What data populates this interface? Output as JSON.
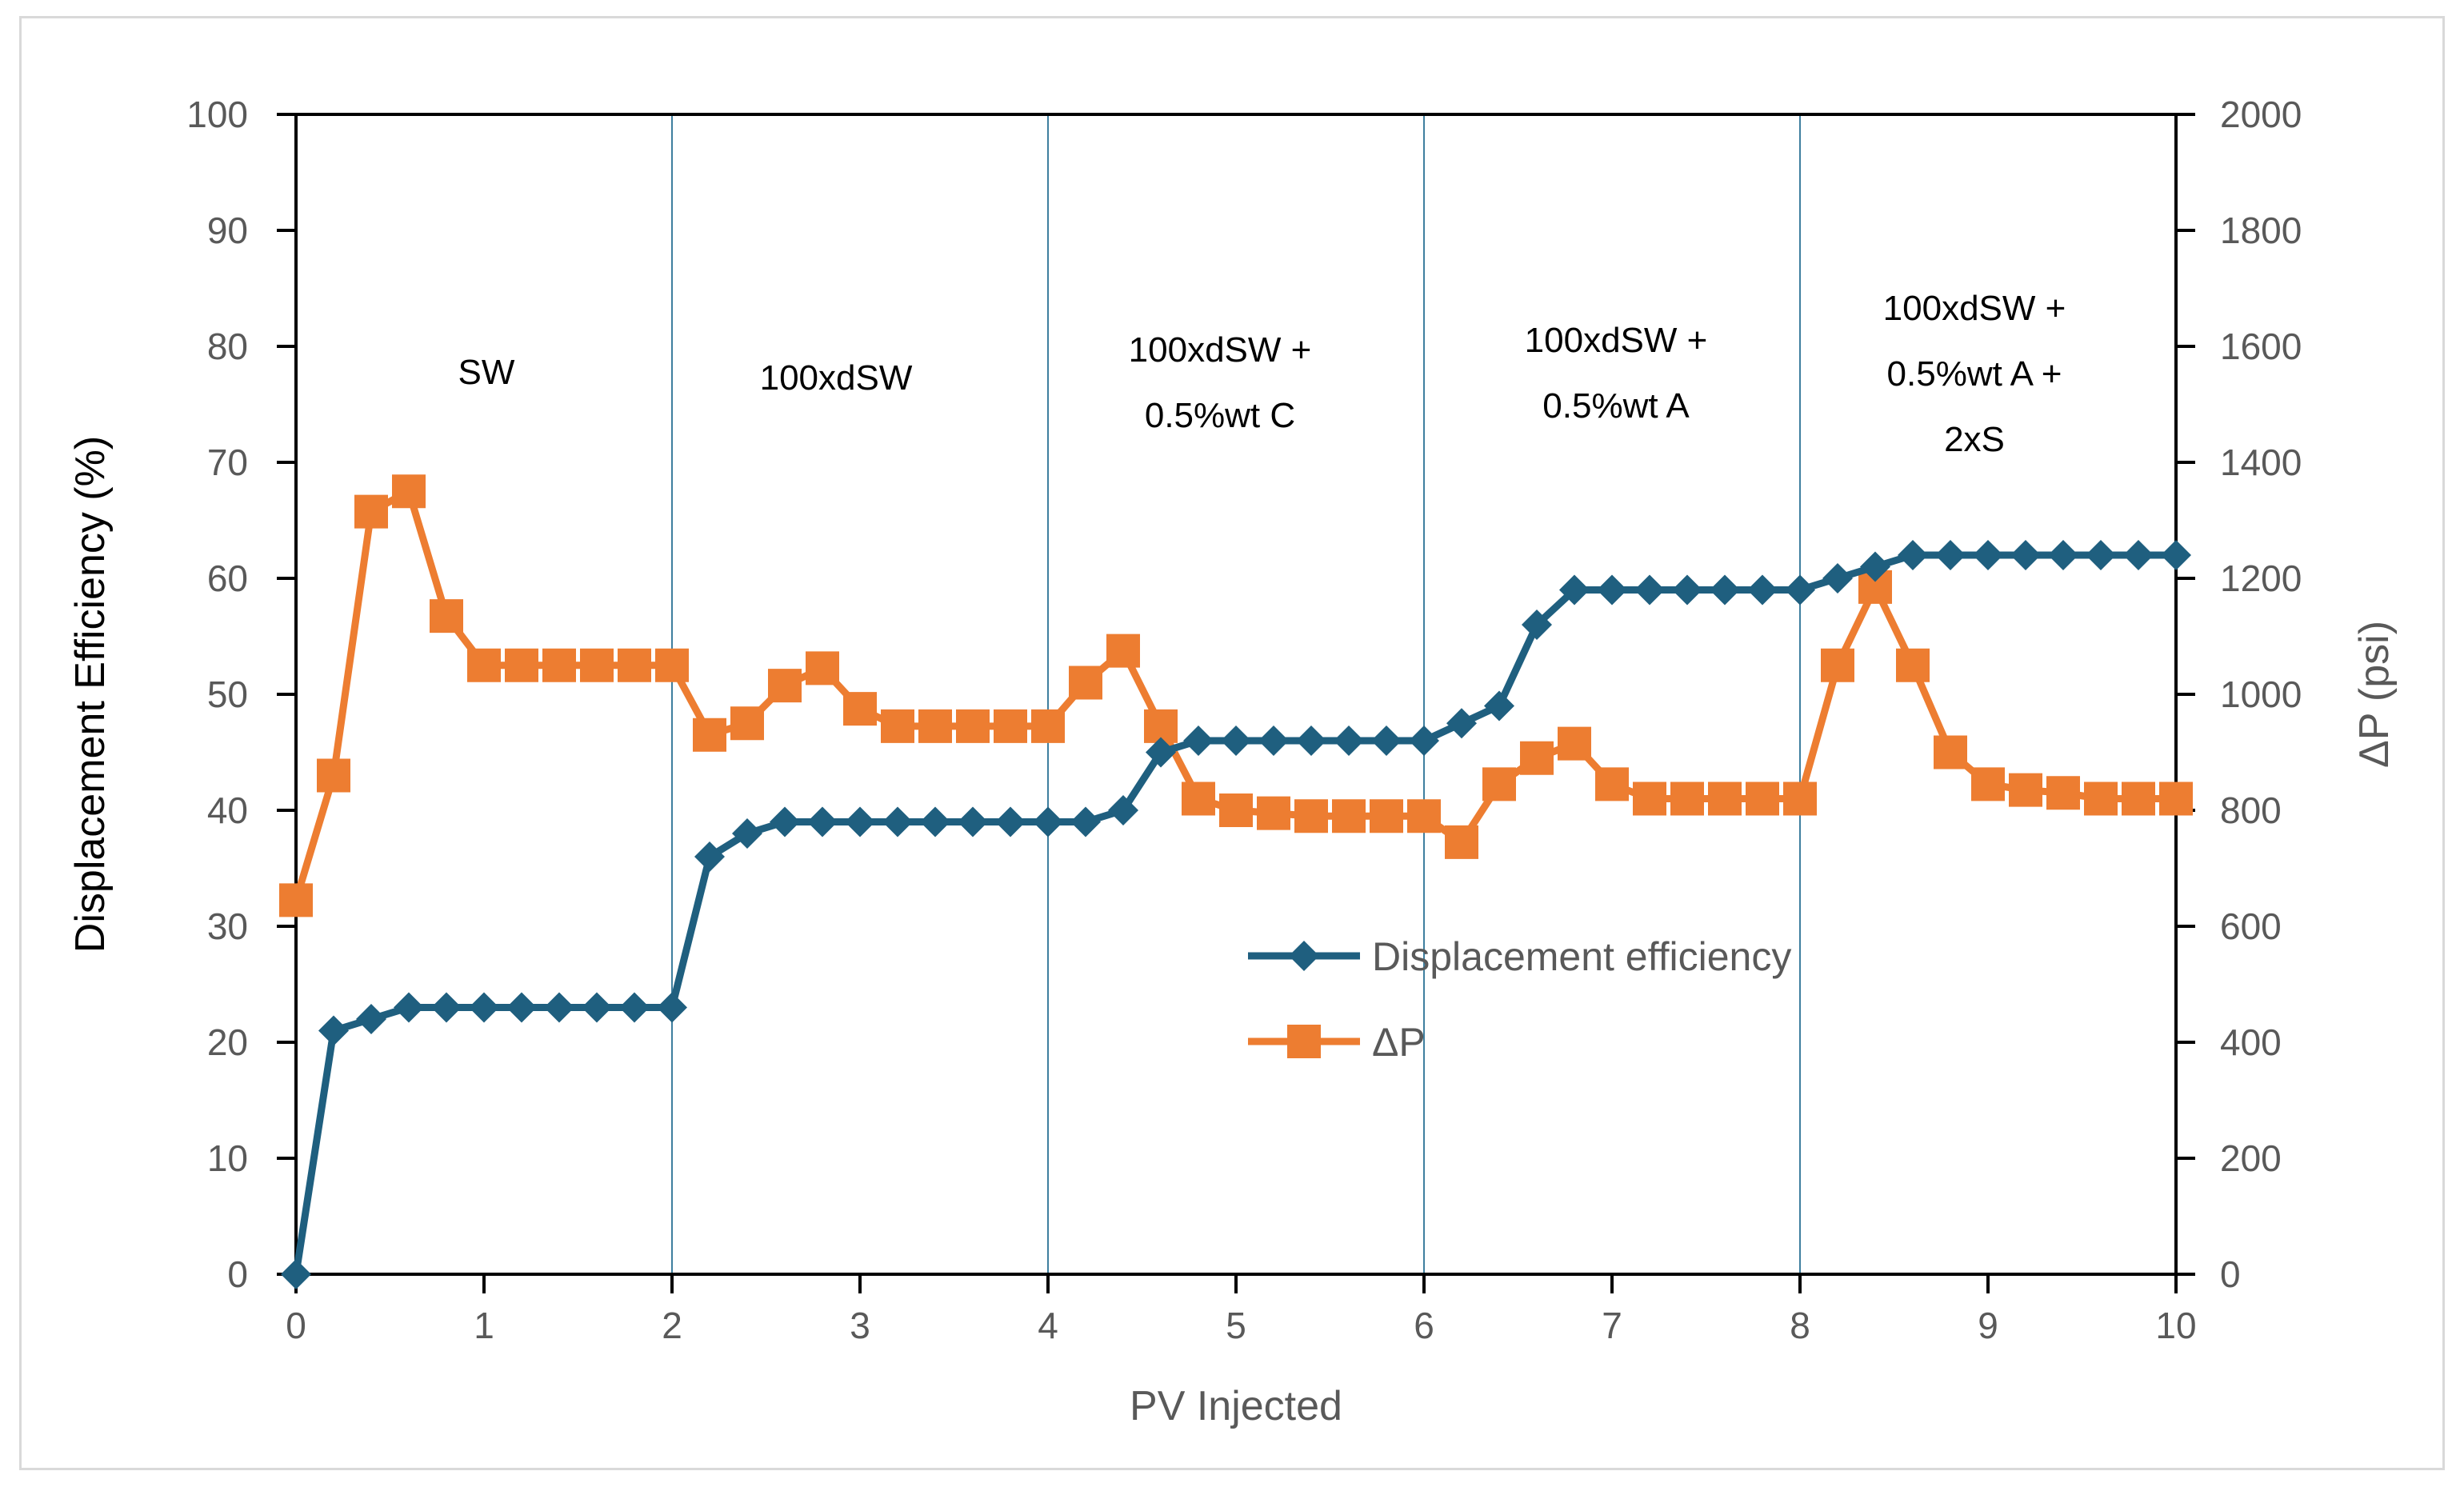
{
  "chart_data": {
    "type": "line",
    "xlabel": "PV Injected",
    "ylabel": "Displacement Efficiency (%)",
    "y2label": "ΔP (psi)",
    "xlim": [
      0,
      10
    ],
    "ylim": [
      0,
      100
    ],
    "y2lim": [
      0,
      2000
    ],
    "xticks": [
      "0",
      "1",
      "2",
      "3",
      "4",
      "5",
      "6",
      "7",
      "8",
      "9",
      "10"
    ],
    "yticks": [
      "0",
      "10",
      "20",
      "30",
      "40",
      "50",
      "60",
      "70",
      "80",
      "90",
      "100"
    ],
    "y2ticks": [
      "0",
      "200",
      "400",
      "600",
      "800",
      "1000",
      "1200",
      "1400",
      "1600",
      "1800",
      "2000"
    ],
    "grid": false,
    "legend_position": "center-right",
    "stage_boundaries": [
      2,
      4,
      6,
      8
    ],
    "stages": [
      {
        "lines": [
          "SW"
        ]
      },
      {
        "lines": [
          "100xdSW"
        ]
      },
      {
        "lines": [
          "100xdSW +",
          "0.5%wt C"
        ]
      },
      {
        "lines": [
          "100xdSW +",
          "0.5%wt A"
        ]
      },
      {
        "lines": [
          "100xdSW +",
          "0.5%wt A +",
          "2xS"
        ]
      }
    ],
    "series": [
      {
        "name": "Displacement efficiency",
        "axis": "left",
        "color": "#1f5f7f",
        "marker": "diamond",
        "x": [
          0,
          0.2,
          0.4,
          0.6,
          0.8,
          1.0,
          1.2,
          1.4,
          1.6,
          1.8,
          2.0,
          2.2,
          2.4,
          2.6,
          2.8,
          3.0,
          3.2,
          3.4,
          3.6,
          3.8,
          4.0,
          4.2,
          4.4,
          4.6,
          4.8,
          5.0,
          5.2,
          5.4,
          5.6,
          5.8,
          6.0,
          6.2,
          6.4,
          6.6,
          6.8,
          7.0,
          7.2,
          7.4,
          7.6,
          7.8,
          8.0,
          8.2,
          8.4,
          8.6,
          8.8,
          9.0,
          9.2,
          9.4,
          9.6,
          9.8,
          10.0
        ],
        "values": [
          0,
          21,
          22,
          23,
          23,
          23,
          23,
          23,
          23,
          23,
          23,
          36,
          38,
          39,
          39,
          39,
          39,
          39,
          39,
          39,
          39,
          39,
          40,
          45,
          46,
          46,
          46,
          46,
          46,
          46,
          46,
          47.5,
          49,
          56,
          59,
          59,
          59,
          59,
          59,
          59,
          59,
          60,
          61,
          62,
          62,
          62,
          62,
          62,
          62,
          62,
          62
        ]
      },
      {
        "name": "ΔP",
        "axis": "right",
        "color": "#ed7d31",
        "marker": "square",
        "x": [
          0,
          0.2,
          0.4,
          0.6,
          0.8,
          1.0,
          1.2,
          1.4,
          1.6,
          1.8,
          2.0,
          2.2,
          2.4,
          2.6,
          2.8,
          3.0,
          3.2,
          3.4,
          3.6,
          3.8,
          4.0,
          4.2,
          4.4,
          4.6,
          4.8,
          5.0,
          5.2,
          5.4,
          5.6,
          5.8,
          6.0,
          6.2,
          6.4,
          6.6,
          6.8,
          7.0,
          7.2,
          7.4,
          7.6,
          7.8,
          8.0,
          8.2,
          8.4,
          8.6,
          8.8,
          9.0,
          9.2,
          9.4,
          9.6,
          9.8,
          10.0
        ],
        "values": [
          645,
          860,
          1315,
          1350,
          1135,
          1050,
          1050,
          1050,
          1050,
          1050,
          1050,
          930,
          950,
          1015,
          1045,
          975,
          945,
          945,
          945,
          945,
          945,
          1020,
          1075,
          945,
          820,
          800,
          795,
          790,
          790,
          790,
          790,
          745,
          845,
          890,
          915,
          845,
          820,
          820,
          820,
          820,
          820,
          1050,
          1185,
          1050,
          900,
          845,
          835,
          830,
          820,
          820,
          820
        ]
      }
    ]
  }
}
